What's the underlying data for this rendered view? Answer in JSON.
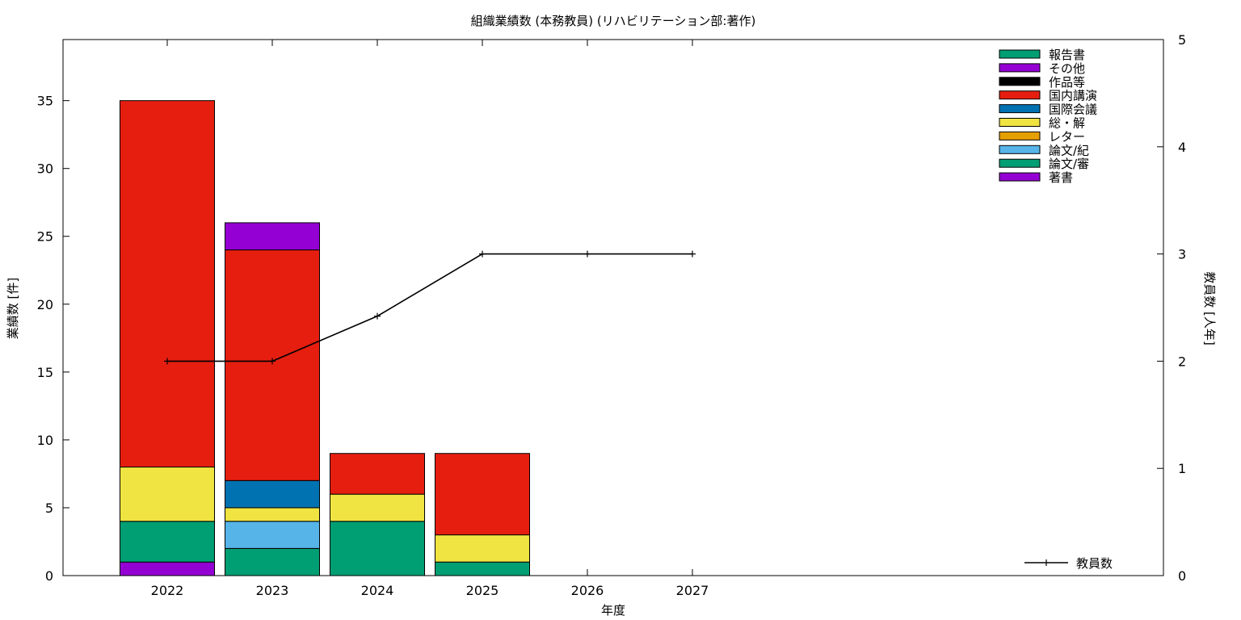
{
  "chart_data": {
    "type": "bar",
    "title": "組織業績数 (本務教員) (リハビリテーション部:著作)",
    "xlabel": "年度",
    "ylabel": "業績数 [件]",
    "y2label": "教員数 [人年]",
    "categories": [
      "2022",
      "2023",
      "2024",
      "2025",
      "2026",
      "2027"
    ],
    "ylim": [
      0,
      39.5
    ],
    "yticks": [
      0,
      5,
      10,
      15,
      20,
      25,
      30,
      35
    ],
    "y2lim": [
      0,
      5
    ],
    "y2ticks": [
      0,
      1,
      2,
      3,
      4,
      5
    ],
    "legend_position": "top-right",
    "stacked": true,
    "series": [
      {
        "name": "著書",
        "color": "#9400d3",
        "values": [
          1,
          0,
          0,
          0,
          0,
          0
        ]
      },
      {
        "name": "論文/審",
        "color": "#009e73",
        "values": [
          3,
          2,
          4,
          1,
          0,
          0
        ]
      },
      {
        "name": "論文/紀",
        "color": "#56b4e9",
        "values": [
          0,
          2,
          0,
          0,
          0,
          0
        ]
      },
      {
        "name": "レター",
        "color": "#e69f00",
        "values": [
          0,
          0,
          0,
          0,
          0,
          0
        ]
      },
      {
        "name": "総・解",
        "color": "#f0e442",
        "values": [
          4,
          1,
          2,
          2,
          0,
          0
        ]
      },
      {
        "name": "国際会議",
        "color": "#0072b2",
        "values": [
          0,
          2,
          0,
          0,
          0,
          0
        ]
      },
      {
        "name": "国内講演",
        "color": "#e51e10",
        "values": [
          27,
          17,
          3,
          6,
          0,
          0
        ]
      },
      {
        "name": "作品等",
        "color": "#000000",
        "values": [
          0,
          0,
          0,
          0,
          0,
          0
        ]
      },
      {
        "name": "その他",
        "color": "#9400d3",
        "values": [
          0,
          2,
          0,
          0,
          0,
          0
        ]
      },
      {
        "name": "報告書",
        "color": "#009e73",
        "values": [
          0,
          0,
          0,
          0,
          0,
          0
        ]
      }
    ],
    "legend_order": [
      "報告書",
      "その他",
      "作品等",
      "国内講演",
      "国際会議",
      "総・解",
      "レター",
      "論文/紀",
      "論文/審",
      "著書"
    ],
    "line_series": {
      "name": "教員数",
      "color": "#000000",
      "axis": "y2",
      "values": [
        2,
        2,
        2.42,
        3,
        3,
        3
      ]
    }
  }
}
